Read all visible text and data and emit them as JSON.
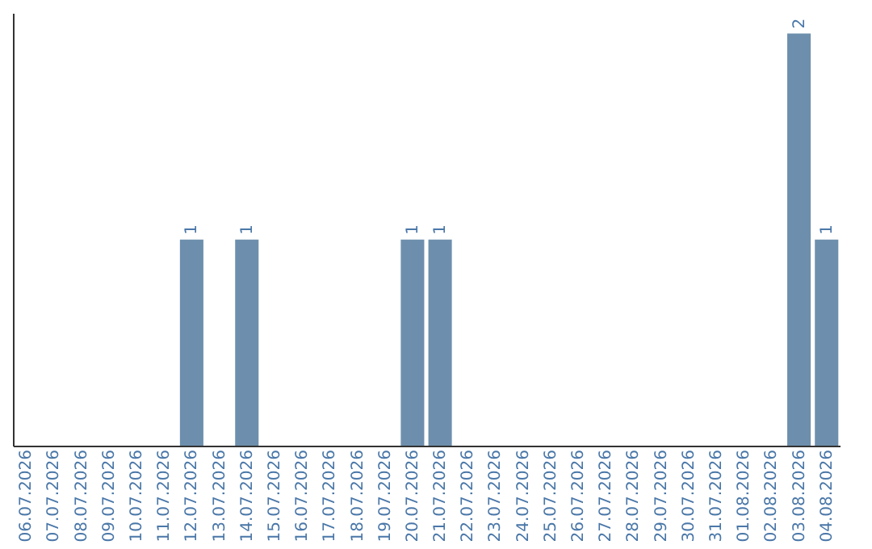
{
  "chart_data": {
    "type": "bar",
    "categories": [
      "06.07.2026",
      "07.07.2026",
      "08.07.2026",
      "09.07.2026",
      "10.07.2026",
      "11.07.2026",
      "12.07.2026",
      "13.07.2026",
      "14.07.2026",
      "15.07.2026",
      "16.07.2026",
      "17.07.2026",
      "18.07.2026",
      "19.07.2026",
      "20.07.2026",
      "21.07.2026",
      "22.07.2026",
      "23.07.2026",
      "24.07.2026",
      "25.07.2026",
      "26.07.2026",
      "27.07.2026",
      "28.07.2026",
      "29.07.2026",
      "30.07.2026",
      "31.07.2026",
      "01.08.2026",
      "02.08.2026",
      "03.08.2026",
      "04.08.2026"
    ],
    "values": [
      0,
      0,
      0,
      0,
      0,
      0,
      1,
      0,
      1,
      0,
      0,
      0,
      0,
      0,
      1,
      1,
      0,
      0,
      0,
      0,
      0,
      0,
      0,
      0,
      0,
      0,
      0,
      0,
      2,
      1
    ],
    "value_labels": [
      null,
      null,
      null,
      null,
      null,
      null,
      "1",
      null,
      "1",
      null,
      null,
      null,
      null,
      null,
      "1",
      "1",
      null,
      null,
      null,
      null,
      null,
      null,
      null,
      null,
      null,
      null,
      null,
      null,
      "2",
      "1"
    ],
    "color": "#6d8fad",
    "ylim": [
      0,
      2.1
    ],
    "tick_labels": "x",
    "grid": false
  }
}
